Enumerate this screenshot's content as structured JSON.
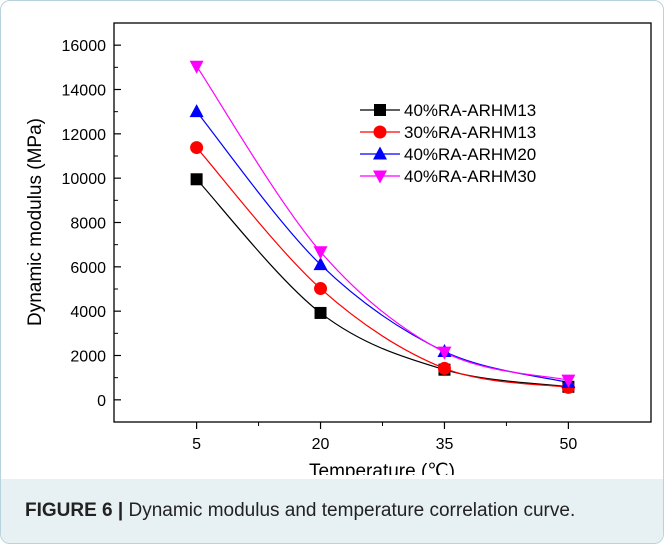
{
  "caption": {
    "label": "FIGURE 6 |",
    "text": "Dynamic modulus and temperature correlation curve."
  },
  "chart_data": {
    "type": "line",
    "xlabel": "Temperature (℃)",
    "ylabel": "Dynamic modulus (MPa)",
    "x": [
      5,
      20,
      35,
      50
    ],
    "xlim": [
      -5,
      60
    ],
    "ylim": [
      -1000,
      17000
    ],
    "yticks": [
      0,
      2000,
      4000,
      6000,
      8000,
      10000,
      12000,
      14000,
      16000
    ],
    "ytick_labels": [
      "0",
      "2000",
      "4000",
      "6000",
      "8000",
      "10000",
      "12000",
      "14000",
      "16000"
    ],
    "xtick_labels": [
      "5",
      "20",
      "35",
      "50"
    ],
    "legend_position": "top-right",
    "series": [
      {
        "name": "40%RA-ARHM13",
        "values": [
          9950,
          3920,
          1360,
          590
        ],
        "color": "#000000",
        "marker": "square"
      },
      {
        "name": "30%RA-ARHM13",
        "values": [
          11380,
          5020,
          1420,
          560
        ],
        "color": "#ff0000",
        "marker": "circle"
      },
      {
        "name": "40%RA-ARHM20",
        "values": [
          13000,
          6100,
          2180,
          780
        ],
        "color": "#0000ff",
        "marker": "triangle-up"
      },
      {
        "name": "40%RA-ARHM30",
        "values": [
          15050,
          6680,
          2150,
          890
        ],
        "color": "#ff00ff",
        "marker": "triangle-down"
      }
    ]
  }
}
